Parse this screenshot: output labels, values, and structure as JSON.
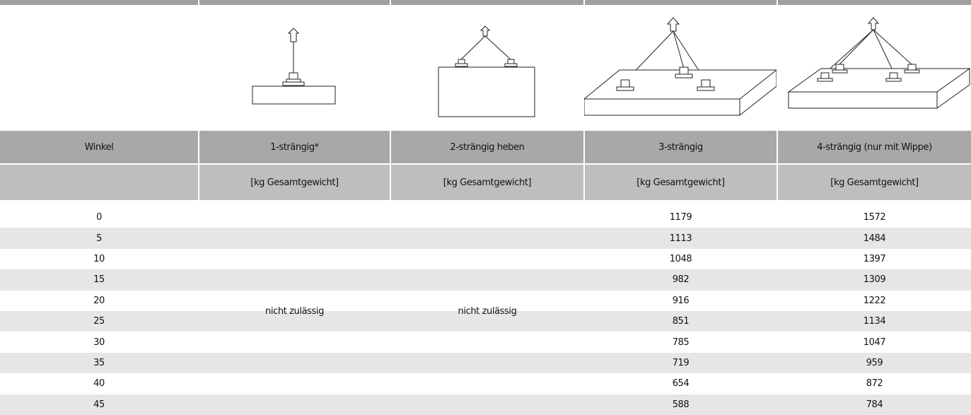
{
  "table": {
    "header": [
      "Winkel",
      "1-strängig*",
      "2-strängig heben",
      "3-strängig",
      "4-strängig (nur mit Wippe)"
    ],
    "subheader": [
      "[kg Gesamtgewicht]",
      "[kg Gesamtgewicht]",
      "[kg Gesamtgewicht]",
      "[kg Gesamtgewicht]"
    ],
    "not_allowed": [
      "nicht zulässig",
      "nicht zulässig"
    ],
    "rows": [
      [
        0,
        1179,
        1572
      ],
      [
        5,
        1113,
        1484
      ],
      [
        10,
        1048,
        1397
      ],
      [
        15,
        982,
        1309
      ],
      [
        20,
        916,
        1222
      ],
      [
        25,
        851,
        1134
      ],
      [
        30,
        785,
        1047
      ],
      [
        35,
        719,
        959
      ],
      [
        40,
        654,
        872
      ],
      [
        45,
        588,
        784
      ]
    ]
  }
}
